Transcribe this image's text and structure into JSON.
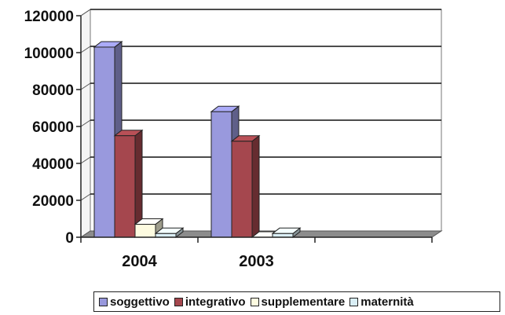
{
  "chart_data": {
    "type": "bar",
    "categories": [
      "2004",
      "2003",
      ""
    ],
    "series": [
      {
        "name": "soggettivo",
        "values": [
          103000,
          68000,
          null
        ],
        "color": "#9999dd"
      },
      {
        "name": "integrativo",
        "values": [
          55000,
          52000,
          null
        ],
        "color": "#a5474e"
      },
      {
        "name": "supplementare",
        "values": [
          7000,
          0,
          null
        ],
        "color": "#fdfbe0"
      },
      {
        "name": "maternità",
        "values": [
          2000,
          2000,
          null
        ],
        "color": "#d9eef5"
      }
    ],
    "ylim": [
      0,
      120000
    ],
    "yticks": [
      "120000",
      "100000",
      "80000",
      "60000",
      "40000",
      "20000",
      "0"
    ],
    "title": "",
    "xlabel": "",
    "ylabel": "",
    "grid": true,
    "legend_position": "bottom",
    "three_d": true
  }
}
